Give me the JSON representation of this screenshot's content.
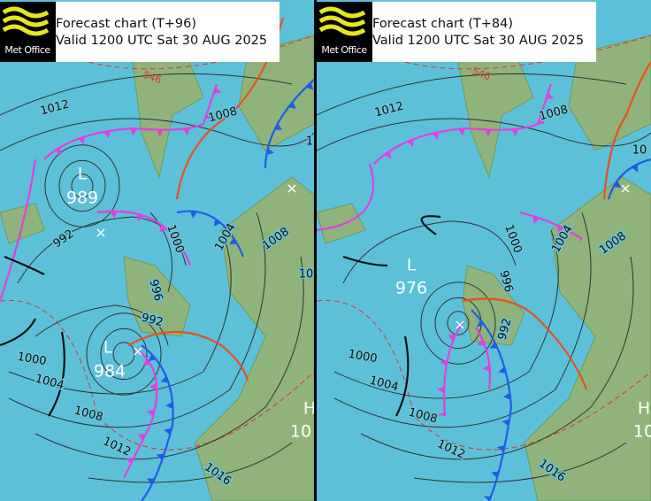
{
  "panels": [
    {
      "header": {
        "logo": "Met Office",
        "title": "Forecast chart (T+96)",
        "valid": "Valid 1200 UTC Sat 30 AUG 2025"
      },
      "centers": [
        {
          "kind": "L",
          "value": "989"
        },
        {
          "kind": "L",
          "value": "984"
        },
        {
          "kind": "H",
          "value": "10"
        }
      ],
      "isobar_labels": [
        "1012",
        "1008",
        "992",
        "1000",
        "1004",
        "1008",
        "996",
        "992",
        "1000",
        "1004",
        "1008",
        "1012",
        "1016",
        "1",
        "10"
      ],
      "thickness_label": "546"
    },
    {
      "header": {
        "logo": "Met Office",
        "title": "Forecast chart (T+84)",
        "valid": "Valid 1200 UTC Sat 30 AUG 2025"
      },
      "centers": [
        {
          "kind": "L",
          "value": "976"
        },
        {
          "kind": "H",
          "value": "10"
        }
      ],
      "isobar_labels": [
        "1012",
        "1008",
        "1000",
        "1004",
        "1008",
        "996",
        "992",
        "1000",
        "1004",
        "1008",
        "1012",
        "1016",
        "10"
      ],
      "thickness_label": "546"
    }
  ]
}
